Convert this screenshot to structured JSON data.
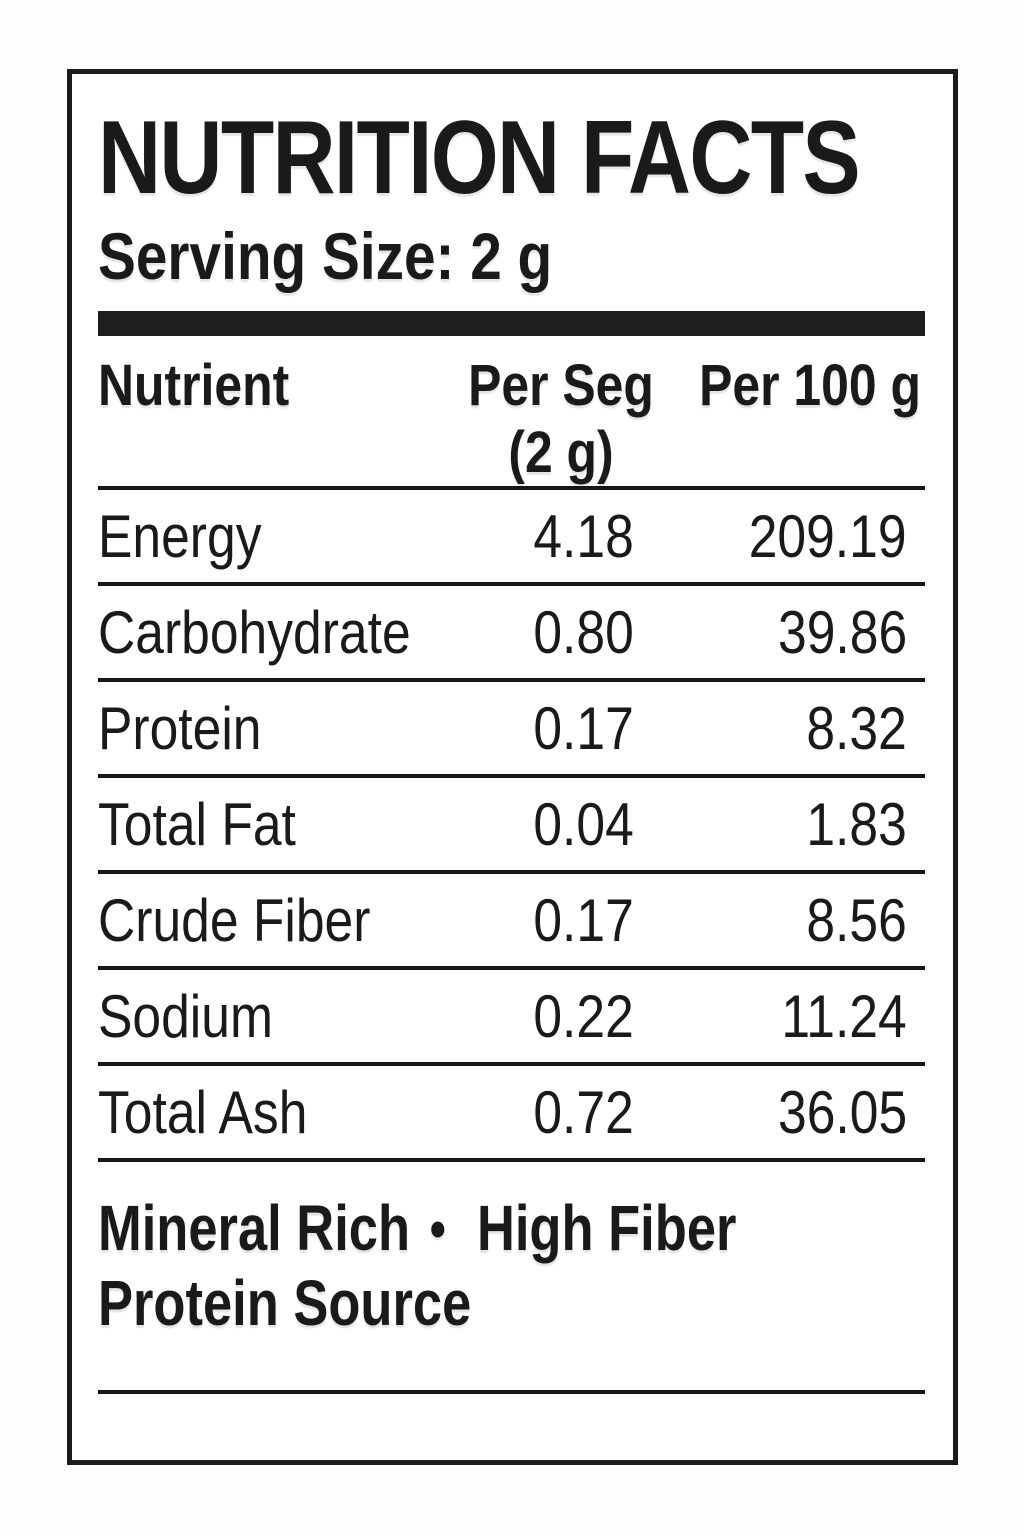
{
  "label": {
    "title": "NUTRITION FACTS",
    "serving_size": "Serving Size: 2 g",
    "table": {
      "headers": {
        "nutrient": "Nutrient",
        "per_serving_line1": "Per Seg",
        "per_serving_line2": "(2 g)",
        "per_100g": "Per 100 g"
      },
      "rows": [
        {
          "nutrient": "Energy",
          "per_seg": "4.18",
          "per_100g": "209.19"
        },
        {
          "nutrient": "Carbohydrate",
          "per_seg": "0.80",
          "per_100g": "39.86"
        },
        {
          "nutrient": "Protein",
          "per_seg": "0.17",
          "per_100g": "8.32"
        },
        {
          "nutrient": "Total Fat",
          "per_seg": "0.04",
          "per_100g": "1.83"
        },
        {
          "nutrient": "Crude Fiber",
          "per_seg": "0.17",
          "per_100g": "8.56"
        },
        {
          "nutrient": "Sodium",
          "per_seg": "0.22",
          "per_100g": "11.24"
        },
        {
          "nutrient": "Total Ash",
          "per_seg": "0.72",
          "per_100g": "36.05"
        }
      ]
    },
    "claims": {
      "line1_left": "Mineral Rich",
      "bullet": "•",
      "line1_right": "High Fiber",
      "line2": "Protein Source"
    },
    "colors": {
      "ink": "#1a1a1a",
      "rule": "#161616",
      "background": "#ffffff"
    }
  }
}
